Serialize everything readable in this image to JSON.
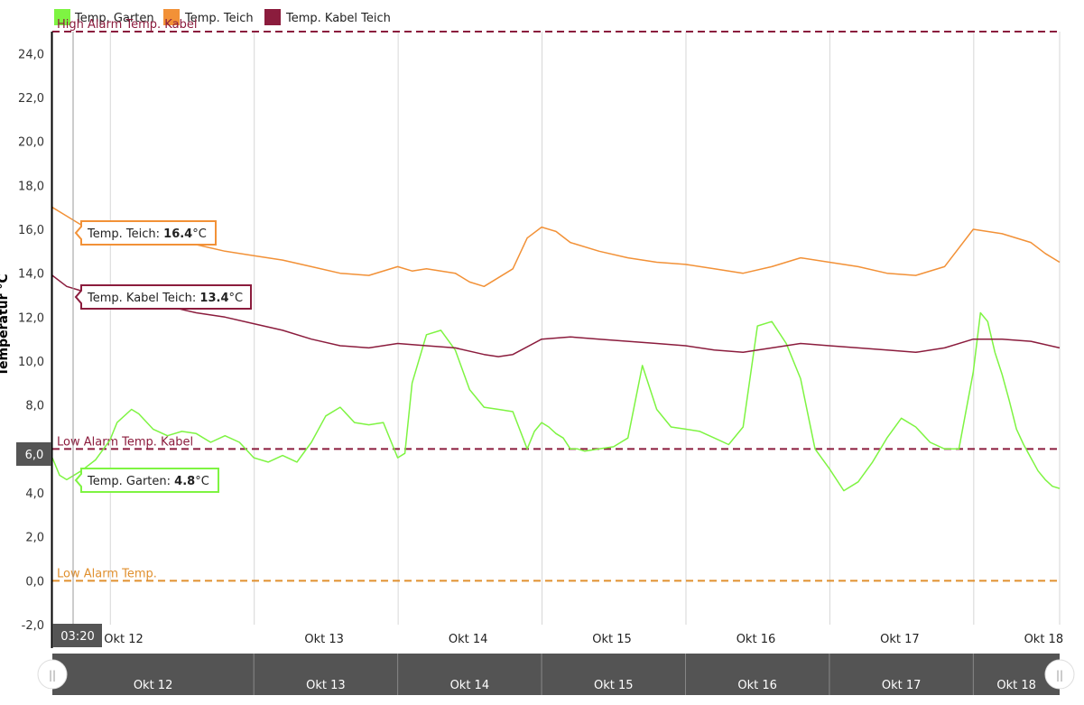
{
  "chart_data": {
    "type": "line",
    "ylabel": "Temperatur °C",
    "ylim": [
      -2,
      25
    ],
    "y_ticks": [
      "-2,0",
      "0,0",
      "2,0",
      "4,0",
      "6,0",
      "8,0",
      "10,0",
      "12,0",
      "14,0",
      "16,0",
      "18,0",
      "20,0",
      "22,0",
      "24,0"
    ],
    "x_tick_labels": [
      "Okt 12",
      "Okt 13",
      "Okt 14",
      "Okt 15",
      "Okt 16",
      "Okt 17",
      "Okt 18"
    ],
    "x_range_days": [
      11.6,
      18.6
    ],
    "grid": "vertical",
    "legend_position": "top-left",
    "series": [
      {
        "name": "Temp. Garten",
        "color": "#7ef442",
        "x": [
          11.6,
          11.65,
          11.7,
          11.8,
          11.9,
          12.0,
          12.05,
          12.15,
          12.2,
          12.3,
          12.4,
          12.5,
          12.6,
          12.7,
          12.8,
          12.9,
          13.0,
          13.1,
          13.2,
          13.3,
          13.4,
          13.5,
          13.6,
          13.7,
          13.8,
          13.9,
          14.0,
          14.05,
          14.1,
          14.2,
          14.3,
          14.4,
          14.5,
          14.6,
          14.7,
          14.8,
          14.9,
          14.95,
          15.0,
          15.05,
          15.1,
          15.15,
          15.2,
          15.25,
          15.3,
          15.4,
          15.5,
          15.6,
          15.7,
          15.8,
          15.9,
          16.0,
          16.1,
          16.2,
          16.3,
          16.4,
          16.5,
          16.6,
          16.7,
          16.8,
          16.9,
          17.0,
          17.1,
          17.2,
          17.3,
          17.4,
          17.5,
          17.6,
          17.7,
          17.8,
          17.9,
          18.0,
          18.05,
          18.1,
          18.15,
          18.2,
          18.25,
          18.3,
          18.35,
          18.4,
          18.45,
          18.5,
          18.55,
          18.6
        ],
        "y": [
          5.6,
          4.8,
          4.6,
          5.0,
          5.5,
          6.4,
          7.2,
          7.8,
          7.6,
          6.9,
          6.6,
          6.8,
          6.7,
          6.3,
          6.6,
          6.3,
          5.6,
          5.4,
          5.7,
          5.4,
          6.3,
          7.5,
          7.9,
          7.2,
          7.1,
          7.2,
          5.6,
          5.8,
          9.0,
          11.2,
          11.4,
          10.5,
          8.7,
          7.9,
          7.8,
          7.7,
          6.0,
          6.8,
          7.2,
          7.0,
          6.7,
          6.5,
          6.0,
          6.0,
          5.9,
          6.0,
          6.1,
          6.5,
          9.8,
          7.8,
          7.0,
          6.9,
          6.8,
          6.5,
          6.2,
          7.0,
          11.6,
          11.8,
          10.8,
          9.2,
          6.0,
          5.1,
          4.1,
          4.5,
          5.4,
          6.5,
          7.4,
          7.0,
          6.3,
          6.0,
          6.0,
          9.5,
          12.2,
          11.8,
          10.4,
          9.4,
          8.2,
          6.9,
          6.2,
          5.6,
          5.0,
          4.6,
          4.3,
          4.2
        ]
      },
      {
        "name": "Temp. Teich",
        "color": "#f29137",
        "x": [
          11.6,
          11.7,
          11.8,
          11.9,
          12.0,
          12.2,
          12.4,
          12.6,
          12.8,
          13.0,
          13.2,
          13.4,
          13.6,
          13.8,
          14.0,
          14.1,
          14.2,
          14.4,
          14.5,
          14.6,
          14.8,
          14.9,
          15.0,
          15.1,
          15.2,
          15.4,
          15.6,
          15.8,
          16.0,
          16.2,
          16.4,
          16.6,
          16.8,
          17.0,
          17.2,
          17.4,
          17.6,
          17.8,
          18.0,
          18.2,
          18.4,
          18.5,
          18.6
        ],
        "y": [
          17.0,
          16.6,
          16.2,
          15.9,
          15.8,
          15.6,
          15.5,
          15.3,
          15.0,
          14.8,
          14.6,
          14.3,
          14.0,
          13.9,
          14.3,
          14.1,
          14.2,
          14.0,
          13.6,
          13.4,
          14.2,
          15.6,
          16.1,
          15.9,
          15.4,
          15.0,
          14.7,
          14.5,
          14.4,
          14.2,
          14.0,
          14.3,
          14.7,
          14.5,
          14.3,
          14.0,
          13.9,
          14.3,
          16.0,
          15.8,
          15.4,
          14.9,
          14.5
        ]
      },
      {
        "name": "Temp. Kabel Teich",
        "color": "#8b1c3d",
        "x": [
          11.6,
          11.7,
          11.8,
          12.0,
          12.2,
          12.4,
          12.6,
          12.8,
          13.0,
          13.2,
          13.4,
          13.6,
          13.8,
          14.0,
          14.2,
          14.4,
          14.6,
          14.7,
          14.8,
          15.0,
          15.2,
          15.4,
          15.6,
          15.8,
          16.0,
          16.2,
          16.4,
          16.6,
          16.8,
          17.0,
          17.2,
          17.4,
          17.6,
          17.8,
          18.0,
          18.2,
          18.4,
          18.6
        ],
        "y": [
          13.9,
          13.4,
          13.2,
          13.0,
          12.8,
          12.5,
          12.2,
          12.0,
          11.7,
          11.4,
          11.0,
          10.7,
          10.6,
          10.8,
          10.7,
          10.6,
          10.3,
          10.2,
          10.3,
          11.0,
          11.1,
          11.0,
          10.9,
          10.8,
          10.7,
          10.5,
          10.4,
          10.6,
          10.8,
          10.7,
          10.6,
          10.5,
          10.4,
          10.6,
          11.0,
          11.0,
          10.9,
          10.6
        ]
      }
    ],
    "plot_lines": [
      {
        "label": "High Alarm Temp. Kabel",
        "y": 25.0,
        "color": "#8b1c3d"
      },
      {
        "label": "Low Alarm Temp. Kabel",
        "y": 6.0,
        "color": "#8b1c3d"
      },
      {
        "label": "Low Alarm Temp.",
        "y": 0.0,
        "color": "#e0902f"
      }
    ],
    "tooltips": [
      {
        "prefix": "Temp. Teich: ",
        "value": "16.4",
        "unit": "°C",
        "color": "#f29137"
      },
      {
        "prefix": "Temp. Kabel Teich: ",
        "value": "13.4",
        "unit": "°C",
        "color": "#8b1c3d"
      },
      {
        "prefix": "Temp. Garten: ",
        "value": "4.8",
        "unit": "°C",
        "color": "#7ef442"
      }
    ],
    "crosshair": {
      "x_label": "03:20",
      "y_label": "6,0"
    },
    "navigator": {
      "labels": [
        "Okt 12",
        "Okt 13",
        "Okt 14",
        "Okt 15",
        "Okt 16",
        "Okt 17",
        "Okt 18"
      ],
      "handle_glyph": "||"
    }
  }
}
